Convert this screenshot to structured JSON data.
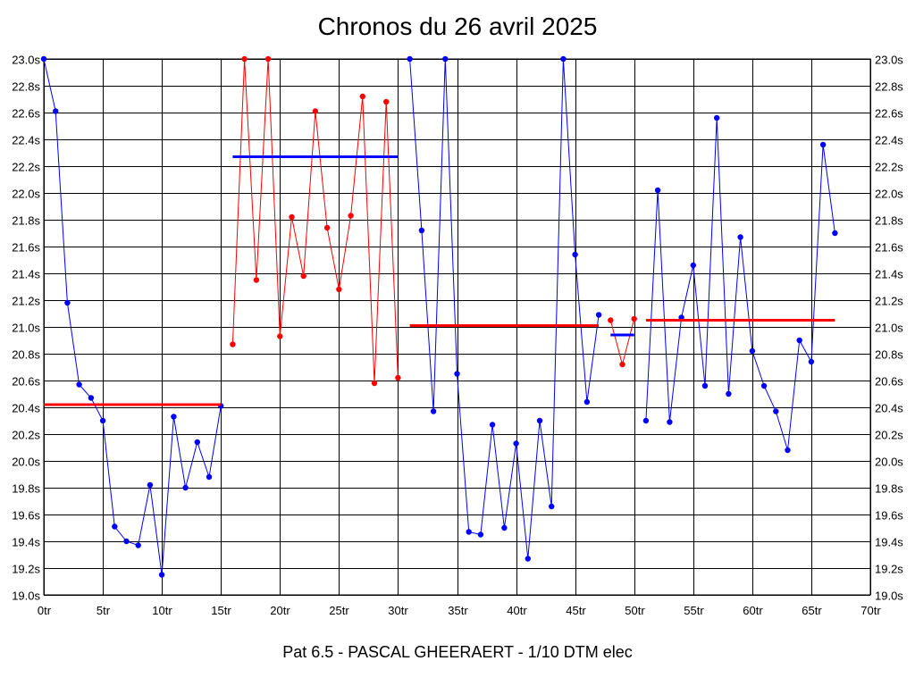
{
  "chart_data": {
    "type": "line",
    "title": "Chronos du 26 avril 2025",
    "caption": "Pat 6.5 - PASCAL GHEERAERT - 1/10 DTM elec",
    "xlabel": "",
    "ylabel": "",
    "xlim": [
      0,
      70
    ],
    "ylim": [
      19.0,
      23.0
    ],
    "x_ticks": [
      0,
      5,
      10,
      15,
      20,
      25,
      30,
      35,
      40,
      45,
      50,
      55,
      60,
      65,
      70
    ],
    "x_tick_labels": [
      "0tr",
      "5tr",
      "10tr",
      "15tr",
      "20tr",
      "25tr",
      "30tr",
      "35tr",
      "40tr",
      "45tr",
      "50tr",
      "55tr",
      "60tr",
      "65tr",
      "70tr"
    ],
    "y_ticks": [
      19.0,
      19.2,
      19.4,
      19.6,
      19.8,
      20.0,
      20.2,
      20.4,
      20.6,
      20.8,
      21.0,
      21.2,
      21.4,
      21.6,
      21.8,
      22.0,
      22.2,
      22.4,
      22.6,
      22.8,
      23.0
    ],
    "y_tick_labels": [
      "19.0s",
      "19.2s",
      "19.4s",
      "19.6s",
      "19.8s",
      "20.0s",
      "20.2s",
      "20.4s",
      "20.6s",
      "20.8s",
      "21.0s",
      "21.2s",
      "21.4s",
      "21.6s",
      "21.8s",
      "22.0s",
      "22.2s",
      "22.4s",
      "22.6s",
      "22.8s",
      "23.0s"
    ],
    "grid": true,
    "series": [
      {
        "color": "#0000ff",
        "x": [
          0,
          1,
          2,
          3,
          4,
          5,
          6,
          7,
          8,
          9,
          10,
          11,
          12,
          13,
          14,
          15
        ],
        "values": [
          23.0,
          22.61,
          21.18,
          20.57,
          20.47,
          20.3,
          19.51,
          19.4,
          19.37,
          19.82,
          19.15,
          20.33,
          19.8,
          20.14,
          19.88,
          20.41
        ]
      },
      {
        "color": "#ff0000",
        "x": [
          16,
          17,
          18,
          19,
          20,
          21,
          22,
          23,
          24,
          25,
          26,
          27,
          28,
          29,
          30
        ],
        "values": [
          20.87,
          23.0,
          21.35,
          23.0,
          20.93,
          21.82,
          21.38,
          22.61,
          21.74,
          21.28,
          21.83,
          22.72,
          20.58,
          22.68,
          20.62
        ]
      },
      {
        "color": "#0000ff",
        "x": [
          31,
          32,
          33,
          34,
          35,
          36,
          37,
          38,
          39,
          40,
          41,
          42,
          43,
          44,
          45,
          46,
          47
        ],
        "values": [
          23.0,
          21.72,
          20.37,
          23.0,
          20.65,
          19.47,
          19.45,
          20.27,
          19.5,
          20.13,
          19.27,
          20.3,
          19.66,
          23.0,
          21.54,
          20.44,
          21.09
        ]
      },
      {
        "color": "#ff0000",
        "x": [
          48,
          49,
          50
        ],
        "values": [
          21.05,
          20.72,
          21.06
        ]
      },
      {
        "color": "#0000ff",
        "x": [
          51,
          52,
          53,
          54,
          55,
          56,
          57,
          58,
          59,
          60,
          61,
          62,
          63,
          64,
          65,
          66,
          67
        ],
        "values": [
          20.3,
          22.02,
          20.29,
          21.07,
          21.46,
          20.56,
          22.56,
          20.5,
          21.67,
          20.82,
          20.56,
          20.37,
          20.08,
          20.9,
          20.74,
          22.36,
          21.7
        ]
      }
    ],
    "averages": [
      {
        "color": "#ff0000",
        "x_start": 0,
        "x_end": 15,
        "value": 20.42
      },
      {
        "color": "#0000ff",
        "x_start": 16,
        "x_end": 30,
        "value": 22.27
      },
      {
        "color": "#ff0000",
        "x_start": 31,
        "x_end": 47,
        "value": 21.01
      },
      {
        "color": "#0000ff",
        "x_start": 48,
        "x_end": 50,
        "value": 20.94
      },
      {
        "color": "#ff0000",
        "x_start": 51,
        "x_end": 67,
        "value": 21.05
      }
    ]
  }
}
